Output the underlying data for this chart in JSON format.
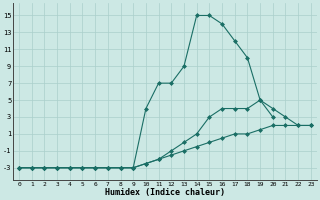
{
  "xlabel": "Humidex (Indice chaleur)",
  "bg_color": "#cce8e4",
  "grid_color": "#aacfcb",
  "line_color": "#1a6e65",
  "xlim": [
    -0.5,
    23.5
  ],
  "ylim": [
    -4.5,
    16.5
  ],
  "xticks": [
    0,
    1,
    2,
    3,
    4,
    5,
    6,
    7,
    8,
    9,
    10,
    11,
    12,
    13,
    14,
    15,
    16,
    17,
    18,
    19,
    20,
    21,
    22,
    23
  ],
  "yticks": [
    -3,
    -1,
    1,
    3,
    5,
    7,
    9,
    11,
    13,
    15
  ],
  "series": [
    {
      "x": [
        0,
        1,
        2,
        3,
        4,
        5,
        6,
        7,
        8,
        9,
        10,
        11,
        12,
        13,
        14,
        15,
        16,
        17,
        18,
        19,
        20,
        21,
        22,
        23
      ],
      "y": [
        -3,
        -3,
        -3,
        -3,
        -3,
        -3,
        -3,
        -3,
        -3,
        -3,
        -2.5,
        -2,
        -1.5,
        -1,
        -0.5,
        0,
        0.5,
        1,
        1,
        1.5,
        2,
        2,
        2,
        2
      ]
    },
    {
      "x": [
        0,
        1,
        2,
        3,
        4,
        5,
        6,
        7,
        8,
        9,
        10,
        11,
        12,
        13,
        14,
        15,
        16,
        17,
        18,
        19,
        20,
        21,
        22,
        23
      ],
      "y": [
        -3,
        -3,
        -3,
        -3,
        -3,
        -3,
        -3,
        -3,
        -3,
        -3,
        -2.5,
        -2,
        -1,
        0,
        1,
        3,
        4,
        4,
        4,
        5,
        4,
        3,
        2,
        2
      ]
    },
    {
      "x": [
        0,
        1,
        2,
        3,
        4,
        5,
        6,
        7,
        8,
        9,
        10,
        11,
        12,
        13,
        14,
        15,
        16,
        17,
        18,
        19,
        20
      ],
      "y": [
        -3,
        -3,
        -3,
        -3,
        -3,
        -3,
        -3,
        -3,
        -3,
        -3,
        4,
        7,
        7,
        9,
        15,
        15,
        14,
        12,
        10,
        5,
        3
      ]
    }
  ]
}
